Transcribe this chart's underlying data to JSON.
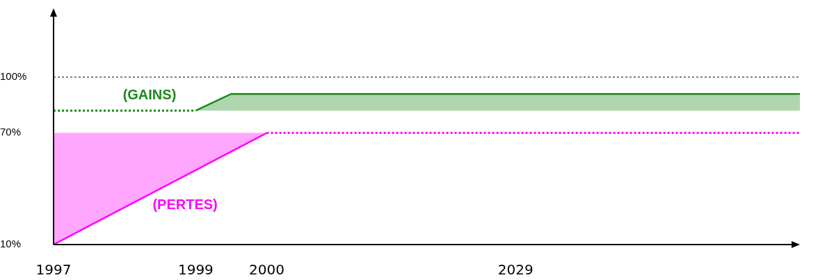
{
  "chart_data": {
    "type": "line",
    "categories": [
      "1997",
      null,
      null,
      null,
      "1999",
      null,
      "2000",
      null,
      null,
      null,
      null,
      null,
      null,
      "2029",
      null,
      null,
      null,
      null,
      null,
      null,
      null,
      null
    ],
    "series": [
      {
        "color": "#1a8a1a",
        "line_style": "dotted",
        "values": [
          82,
          82,
          82,
          82,
          82,
          null,
          null,
          null,
          null,
          null,
          null,
          null,
          null,
          null,
          null,
          null,
          null,
          null,
          null,
          null,
          null,
          null
        ]
      },
      {
        "name": "(GAINS)",
        "color": "#1a8a1a",
        "line_style": "solid",
        "values": [
          null,
          null,
          null,
          null,
          82,
          91,
          91,
          91,
          91,
          91,
          91,
          91,
          91,
          91,
          91,
          91,
          91,
          91,
          91,
          91,
          91,
          91
        ],
        "lower": [
          null,
          null,
          null,
          null,
          82,
          82,
          82,
          82,
          82,
          82,
          82,
          82,
          82,
          82,
          82,
          82,
          82,
          82,
          82,
          82,
          82,
          82
        ],
        "upper": [
          null,
          null,
          null,
          null,
          82,
          91,
          91,
          91,
          91,
          91,
          91,
          91,
          91,
          91,
          91,
          91,
          91,
          91,
          91,
          91,
          91,
          91
        ]
      },
      {
        "name": "(PERTES)",
        "color": "#ff00ff",
        "line_style": "solid",
        "values": [
          10,
          20,
          30,
          40,
          50,
          60,
          70,
          null,
          null,
          null,
          null,
          null,
          null,
          null,
          null,
          null,
          null,
          null,
          null,
          null,
          null,
          null
        ],
        "lower": [
          10,
          20,
          30,
          40,
          50,
          60,
          70,
          null,
          null,
          null,
          null,
          null,
          null,
          null,
          null,
          null,
          null,
          null,
          null,
          null,
          null,
          null
        ],
        "upper": [
          70,
          70,
          70,
          70,
          70,
          70,
          70,
          null,
          null,
          null,
          null,
          null,
          null,
          null,
          null,
          null,
          null,
          null,
          null,
          null,
          null,
          null
        ]
      },
      {
        "color": "#ff00ff",
        "line_style": "dotted",
        "values": [
          null,
          null,
          null,
          null,
          null,
          null,
          70,
          70,
          70,
          70,
          70,
          70,
          70,
          70,
          70,
          70,
          70,
          70,
          70,
          70,
          70,
          70
        ]
      }
    ],
    "ylim": [
      10,
      134
    ],
    "yticks": [
      {
        "value": 10,
        "label": "10%"
      },
      {
        "value": 70,
        "label": "70%"
      },
      {
        "value": 100,
        "label": "100%"
      }
    ],
    "ref_lines": [
      {
        "axis": "y",
        "value": 100,
        "color": "#000000",
        "line_style": "dotted"
      }
    ],
    "grid": false,
    "legend": false,
    "marker": "none"
  }
}
